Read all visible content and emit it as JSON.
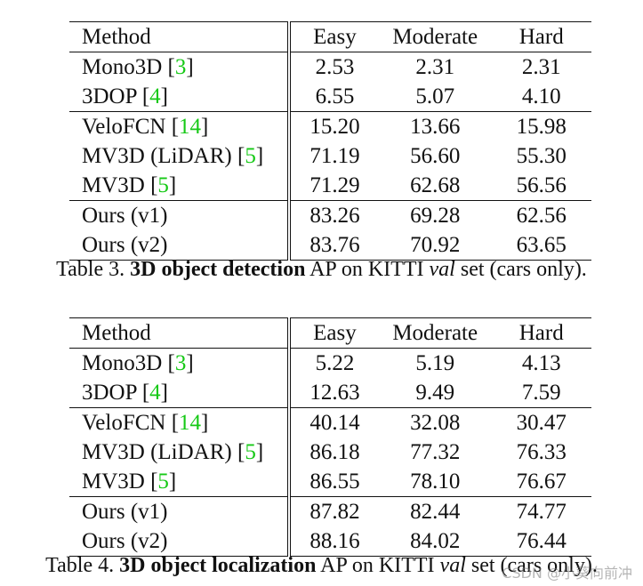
{
  "tables": [
    {
      "header": [
        "Method",
        "Easy",
        "Moderate",
        "Hard"
      ],
      "groups": [
        [
          {
            "method": "Mono3D",
            "ref": "3",
            "values": [
              "2.53",
              "2.31",
              "2.31"
            ],
            "bold": [
              false,
              false,
              false
            ]
          },
          {
            "method": "3DOP",
            "ref": "4",
            "values": [
              "6.55",
              "5.07",
              "4.10"
            ],
            "bold": [
              false,
              false,
              false
            ]
          }
        ],
        [
          {
            "method": "VeloFCN",
            "ref": "14",
            "values": [
              "15.20",
              "13.66",
              "15.98"
            ],
            "bold": [
              false,
              false,
              false
            ]
          },
          {
            "method": "MV3D (LiDAR)",
            "ref": "5",
            "values": [
              "71.19",
              "56.60",
              "55.30"
            ],
            "bold": [
              false,
              false,
              false
            ]
          },
          {
            "method": "MV3D",
            "ref": "5",
            "values": [
              "71.29",
              "62.68",
              "56.56"
            ],
            "bold": [
              false,
              false,
              false
            ]
          }
        ],
        [
          {
            "method": "Ours (v1)",
            "ref": "",
            "values": [
              "83.26",
              "69.28",
              "62.56"
            ],
            "bold": [
              false,
              false,
              false
            ]
          },
          {
            "method": "Ours (v2)",
            "ref": "",
            "values": [
              "83.76",
              "70.92",
              "63.65"
            ],
            "bold": [
              true,
              true,
              true
            ]
          }
        ]
      ],
      "caption": {
        "prefix": "Table 3. ",
        "bold": "3D object detection",
        "middle": " AP on KITTI ",
        "italic": "val",
        "suffix": " set (cars only)."
      }
    },
    {
      "header": [
        "Method",
        "Easy",
        "Moderate",
        "Hard"
      ],
      "groups": [
        [
          {
            "method": "Mono3D",
            "ref": "3",
            "values": [
              "5.22",
              "5.19",
              "4.13"
            ],
            "bold": [
              false,
              false,
              false
            ]
          },
          {
            "method": "3DOP",
            "ref": "4",
            "values": [
              "12.63",
              "9.49",
              "7.59"
            ],
            "bold": [
              false,
              false,
              false
            ]
          }
        ],
        [
          {
            "method": "VeloFCN",
            "ref": "14",
            "values": [
              "40.14",
              "32.08",
              "30.47"
            ],
            "bold": [
              false,
              false,
              false
            ]
          },
          {
            "method": "MV3D (LiDAR)",
            "ref": "5",
            "values": [
              "86.18",
              "77.32",
              "76.33"
            ],
            "bold": [
              false,
              false,
              false
            ]
          },
          {
            "method": "MV3D",
            "ref": "5",
            "values": [
              "86.55",
              "78.10",
              "76.67"
            ],
            "bold": [
              false,
              false,
              true
            ]
          }
        ],
        [
          {
            "method": "Ours (v1)",
            "ref": "",
            "values": [
              "87.82",
              "82.44",
              "74.77"
            ],
            "bold": [
              false,
              false,
              false
            ]
          },
          {
            "method": "Ours (v2)",
            "ref": "",
            "values": [
              "88.16",
              "84.02",
              "76.44"
            ],
            "bold": [
              true,
              true,
              false
            ]
          }
        ]
      ],
      "caption": {
        "prefix": "Table 4. ",
        "bold": "3D object localization",
        "middle": " AP on KITTI ",
        "italic": "val",
        "suffix": " set (cars only)."
      }
    }
  ],
  "watermark": "CSDN @小葵向前冲"
}
